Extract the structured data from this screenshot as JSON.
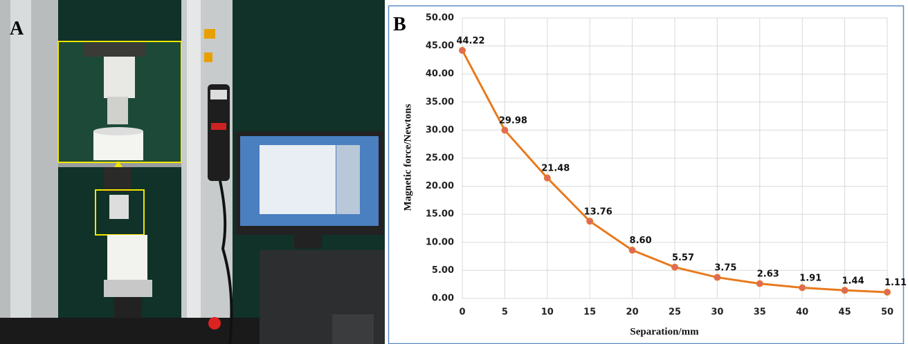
{
  "photo": {
    "panel_label": "A"
  },
  "chart_data": {
    "type": "line",
    "panel_label": "B",
    "x_label": "Separation/mm",
    "y_label": "Magnetic force/Newtons",
    "x": [
      0,
      5,
      10,
      15,
      20,
      25,
      30,
      35,
      40,
      45,
      50
    ],
    "values": [
      44.22,
      29.98,
      21.48,
      13.76,
      8.6,
      5.57,
      3.75,
      2.63,
      1.91,
      1.44,
      1.11
    ],
    "value_labels": [
      "44.22",
      "29.98",
      "21.48",
      "13.76",
      "8.60",
      "5.57",
      "3.75",
      "2.63",
      "1.91",
      "1.44",
      "1.11"
    ],
    "color": "#e8791d",
    "marker_color": "#e06a5a",
    "xlim": [
      0,
      50
    ],
    "xticks": [
      0,
      5,
      10,
      15,
      20,
      25,
      30,
      35,
      40,
      45,
      50
    ],
    "ylim": [
      0,
      50
    ],
    "yticks": [
      {
        "value": 0,
        "label": "0.00"
      },
      {
        "value": 5,
        "label": "5.00"
      },
      {
        "value": 10,
        "label": "10.00"
      },
      {
        "value": 15,
        "label": "15.00"
      },
      {
        "value": 20,
        "label": "20.00"
      },
      {
        "value": 25,
        "label": "25.00"
      },
      {
        "value": 30,
        "label": "30.00"
      },
      {
        "value": 35,
        "label": "35.00"
      },
      {
        "value": 40,
        "label": "40.00"
      },
      {
        "value": 45,
        "label": "45.00"
      },
      {
        "value": 50,
        "label": "50.00"
      }
    ],
    "grid": true
  }
}
